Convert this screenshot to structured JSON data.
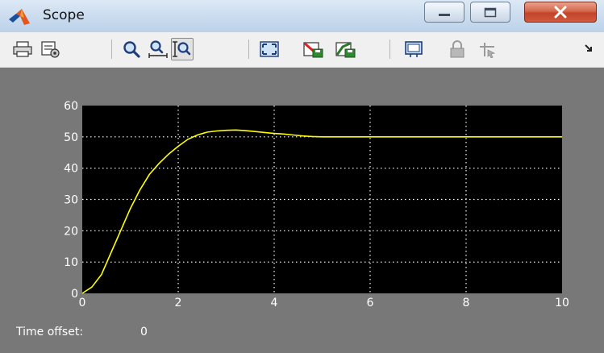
{
  "window": {
    "title": "Scope"
  },
  "toolbar": {
    "buttons": [
      {
        "icon": "print-icon"
      },
      {
        "icon": "parameters-icon"
      },
      {
        "icon": "zoom-icon"
      },
      {
        "icon": "zoom-x-axis-icon"
      },
      {
        "icon": "zoom-y-axis-icon",
        "pressed": true
      },
      {
        "icon": "autoscale-icon"
      },
      {
        "icon": "save-axes-settings-icon"
      },
      {
        "icon": "restore-axes-settings-icon"
      },
      {
        "icon": "floating-scope-icon"
      },
      {
        "icon": "lock-axes-icon"
      },
      {
        "icon": "signal-selection-icon"
      }
    ]
  },
  "status": {
    "time_offset_label": "Time offset:",
    "time_offset_value": "0"
  },
  "colors": {
    "plot_background": "#000000",
    "trace": "#ffff00",
    "frame": "#787878",
    "grid": "#ffffff"
  },
  "chart_data": {
    "type": "line",
    "title": "",
    "xlabel": "",
    "ylabel": "",
    "xlim": [
      0,
      10
    ],
    "ylim": [
      0,
      60
    ],
    "xticks": [
      "0",
      "2",
      "4",
      "6",
      "8",
      "10"
    ],
    "yticks": [
      "0",
      "10",
      "20",
      "30",
      "40",
      "50",
      "60"
    ],
    "grid": true,
    "series": [
      {
        "x": [
          0,
          0.2,
          0.4,
          0.6,
          0.8,
          1.0,
          1.2,
          1.4,
          1.6,
          1.8,
          2.0,
          2.2,
          2.4,
          2.6,
          2.8,
          3.0,
          3.2,
          3.4,
          3.6,
          3.8,
          4.0,
          4.2,
          4.4,
          4.6,
          4.8,
          5.0,
          5.5,
          6.0,
          7.0,
          8.0,
          9.0,
          10.0
        ],
        "y": [
          0,
          2,
          6,
          13,
          20,
          27,
          33,
          38,
          41.5,
          44.5,
          47,
          49.2,
          50.6,
          51.5,
          51.9,
          52.1,
          52.2,
          52.0,
          51.7,
          51.4,
          51.1,
          50.9,
          50.6,
          50.3,
          50.1,
          50.0,
          50.0,
          50.0,
          50.0,
          50.0,
          50.0,
          50.0
        ]
      }
    ]
  }
}
